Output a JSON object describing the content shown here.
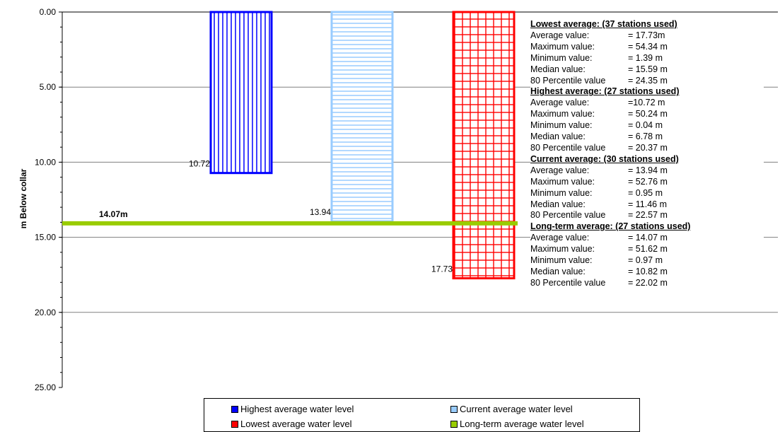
{
  "chart_data": {
    "type": "bar",
    "ylabel": "m Below collar",
    "ylim": [
      0,
      25
    ],
    "y_inverted": true,
    "y_ticks": [
      "0.00",
      "5.00",
      "10.00",
      "15.00",
      "20.00",
      "25.00"
    ],
    "grid": true,
    "series": [
      {
        "name": "Highest average water level",
        "value": 10.72,
        "label": "10.72",
        "color": "#0000ff",
        "pattern": "vertical-lines"
      },
      {
        "name": "Current average water level",
        "value": 13.94,
        "label": "13.94",
        "color": "#99ccff",
        "pattern": "horizontal-lines"
      },
      {
        "name": "Lowest average water level",
        "value": 17.73,
        "label": "17.73",
        "color": "#ff0000",
        "pattern": "grid"
      }
    ],
    "reference_line": {
      "name": "Long-term average water level",
      "value": 14.07,
      "label": "14.07m",
      "color": "#99cc00"
    },
    "legend_position": "bottom"
  },
  "stats": [
    {
      "heading": "Lowest average: (37 stations used)",
      "rows": [
        {
          "label": "Average value:",
          "value": "= 17.73m"
        },
        {
          "label": "Maximum value:",
          "value": "= 54.34 m"
        },
        {
          "label": "Minimum value:",
          "value": "= 1.39 m"
        },
        {
          "label": "Median value:",
          "value": "= 15.59 m"
        },
        {
          "label": "80 Percentile value",
          "value": "= 24.35 m"
        }
      ]
    },
    {
      "heading": "Highest average: (27 stations used)",
      "rows": [
        {
          "label": "Average value:",
          "value": "=10.72 m"
        },
        {
          "label": "Maximum value:",
          "value": "= 50.24 m"
        },
        {
          "label": "Minimum value:",
          "value": "= 0.04 m"
        },
        {
          "label": "Median value:",
          "value": "= 6.78 m"
        },
        {
          "label": "80 Percentile value",
          "value": "= 20.37 m"
        }
      ]
    },
    {
      "heading": "Current average: (30 stations used)",
      "rows": [
        {
          "label": "Average value:",
          "value": "= 13.94 m"
        },
        {
          "label": "Maximum value:",
          "value": "= 52.76 m"
        },
        {
          "label": "Minimum value:",
          "value": "= 0.95 m"
        },
        {
          "label": "Median value:",
          "value": "= 11.46 m"
        },
        {
          "label": "80 Percentile value",
          "value": "= 22.57 m"
        }
      ]
    },
    {
      "heading": "Long-term average: (27 stations used)",
      "rows": [
        {
          "label": "Average value:",
          "value": "= 14.07 m"
        },
        {
          "label": "Maximum value:",
          "value": "= 51.62 m"
        },
        {
          "label": "Minimum value:",
          "value": "= 0.97 m"
        },
        {
          "label": "Median value:",
          "value": "= 10.82 m"
        },
        {
          "label": "80 Percentile value",
          "value": "= 22.02 m"
        }
      ]
    }
  ]
}
